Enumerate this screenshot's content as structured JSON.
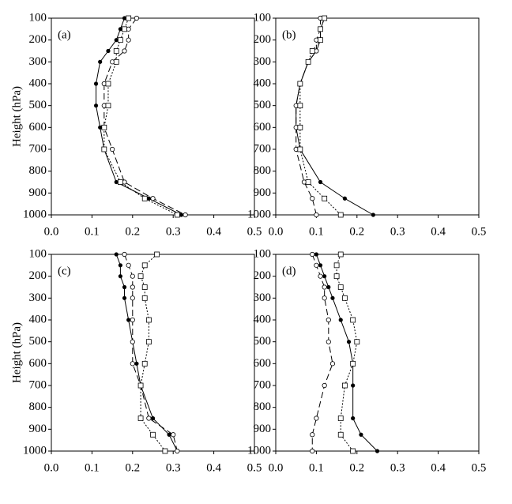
{
  "chart_data": [
    {
      "type": "line",
      "label": "(a)",
      "ylabel": "Height (hPa)",
      "y": [
        100,
        150,
        200,
        250,
        300,
        400,
        500,
        600,
        700,
        850,
        925,
        1000
      ],
      "xlim": [
        0,
        0.5
      ],
      "ylim": [
        1000,
        100
      ],
      "xticks": [
        {
          "value": 0,
          "label": "0.0"
        },
        0.1,
        0.2,
        0.3,
        0.4,
        0.5
      ],
      "yticks": [
        100,
        200,
        300,
        400,
        500,
        600,
        700,
        800,
        900,
        1000
      ],
      "series": [
        {
          "color": "#000000",
          "style": "solid",
          "marker": "filled-circle",
          "values": [
            0.18,
            0.17,
            0.16,
            0.14,
            0.12,
            0.11,
            0.11,
            0.12,
            0.13,
            0.16,
            0.24,
            0.32
          ]
        },
        {
          "color": "#000000",
          "style": "dashed",
          "marker": "open-circle",
          "values": [
            0.21,
            0.19,
            0.19,
            0.18,
            0.15,
            0.13,
            0.13,
            0.13,
            0.15,
            0.18,
            0.25,
            0.33
          ]
        },
        {
          "color": "#000000",
          "style": "dotted",
          "marker": "open-square",
          "values": [
            0.19,
            0.18,
            0.17,
            0.16,
            0.16,
            0.14,
            0.14,
            0.13,
            0.13,
            0.17,
            0.23,
            0.31
          ]
        }
      ]
    },
    {
      "type": "line",
      "label": "(b)",
      "y": [
        100,
        150,
        200,
        250,
        300,
        400,
        500,
        600,
        700,
        850,
        925,
        1000
      ],
      "xlim": [
        0,
        0.5
      ],
      "ylim": [
        1000,
        100
      ],
      "xticks": [
        {
          "value": 0,
          "label": "0.0"
        },
        0.1,
        0.2,
        0.3,
        0.4,
        0.5
      ],
      "yticks": [
        100,
        200,
        300,
        400,
        500,
        600,
        700,
        800,
        900,
        1000
      ],
      "series": [
        {
          "color": "#000000",
          "style": "solid",
          "marker": "filled-circle",
          "values": [
            0.12,
            0.11,
            0.11,
            0.1,
            0.08,
            0.06,
            0.05,
            0.05,
            0.06,
            0.11,
            0.17,
            0.24
          ]
        },
        {
          "color": "#000000",
          "style": "dashed",
          "marker": "open-circle",
          "values": [
            0.11,
            0.11,
            0.1,
            0.1,
            0.08,
            0.06,
            0.05,
            0.05,
            0.05,
            0.07,
            0.09,
            0.1
          ]
        },
        {
          "color": "#000000",
          "style": "dotted",
          "marker": "open-square",
          "values": [
            0.12,
            0.11,
            0.11,
            0.09,
            0.08,
            0.06,
            0.06,
            0.06,
            0.06,
            0.08,
            0.12,
            0.16
          ]
        }
      ]
    },
    {
      "type": "line",
      "label": "(c)",
      "ylabel": "Height (hPa)",
      "y": [
        100,
        150,
        200,
        250,
        300,
        400,
        500,
        600,
        700,
        850,
        925,
        1000
      ],
      "xlim": [
        0,
        0.5
      ],
      "ylim": [
        1000,
        100
      ],
      "xticks": [
        {
          "value": 0,
          "label": "0.0"
        },
        0.1,
        0.2,
        0.3,
        0.4,
        0.5
      ],
      "yticks": [
        100,
        200,
        300,
        400,
        500,
        600,
        700,
        800,
        900,
        1000
      ],
      "series": [
        {
          "color": "#000000",
          "style": "solid",
          "marker": "filled-circle",
          "values": [
            0.16,
            0.17,
            0.17,
            0.18,
            0.18,
            0.19,
            0.2,
            0.21,
            0.22,
            0.25,
            0.29,
            0.31
          ]
        },
        {
          "color": "#000000",
          "style": "dashed",
          "marker": "open-circle",
          "values": [
            0.18,
            0.19,
            0.2,
            0.2,
            0.2,
            0.2,
            0.2,
            0.2,
            0.22,
            0.24,
            0.3,
            0.31
          ]
        },
        {
          "color": "#000000",
          "style": "dotted",
          "marker": "open-square",
          "values": [
            0.26,
            0.23,
            0.22,
            0.23,
            0.23,
            0.24,
            0.24,
            0.23,
            0.22,
            0.22,
            0.25,
            0.28
          ]
        }
      ]
    },
    {
      "type": "line",
      "label": "(d)",
      "y": [
        100,
        150,
        200,
        250,
        300,
        400,
        500,
        600,
        700,
        850,
        925,
        1000
      ],
      "xlim": [
        0,
        0.5
      ],
      "ylim": [
        1000,
        100
      ],
      "xticks": [
        {
          "value": 0,
          "label": "0.0"
        },
        0.1,
        0.2,
        0.3,
        0.4,
        0.5
      ],
      "yticks": [
        100,
        200,
        300,
        400,
        500,
        600,
        700,
        800,
        900,
        1000
      ],
      "series": [
        {
          "color": "#000000",
          "style": "solid",
          "marker": "filled-circle",
          "values": [
            0.1,
            0.11,
            0.12,
            0.13,
            0.14,
            0.16,
            0.18,
            0.19,
            0.19,
            0.19,
            0.21,
            0.25
          ]
        },
        {
          "color": "#000000",
          "style": "dashed",
          "marker": "open-circle",
          "values": [
            0.09,
            0.1,
            0.11,
            0.12,
            0.12,
            0.13,
            0.13,
            0.14,
            0.12,
            0.1,
            0.09,
            0.09
          ]
        },
        {
          "color": "#000000",
          "style": "dotted",
          "marker": "open-square",
          "values": [
            0.16,
            0.15,
            0.15,
            0.16,
            0.17,
            0.19,
            0.2,
            0.19,
            0.17,
            0.16,
            0.16,
            0.19
          ]
        }
      ]
    }
  ]
}
